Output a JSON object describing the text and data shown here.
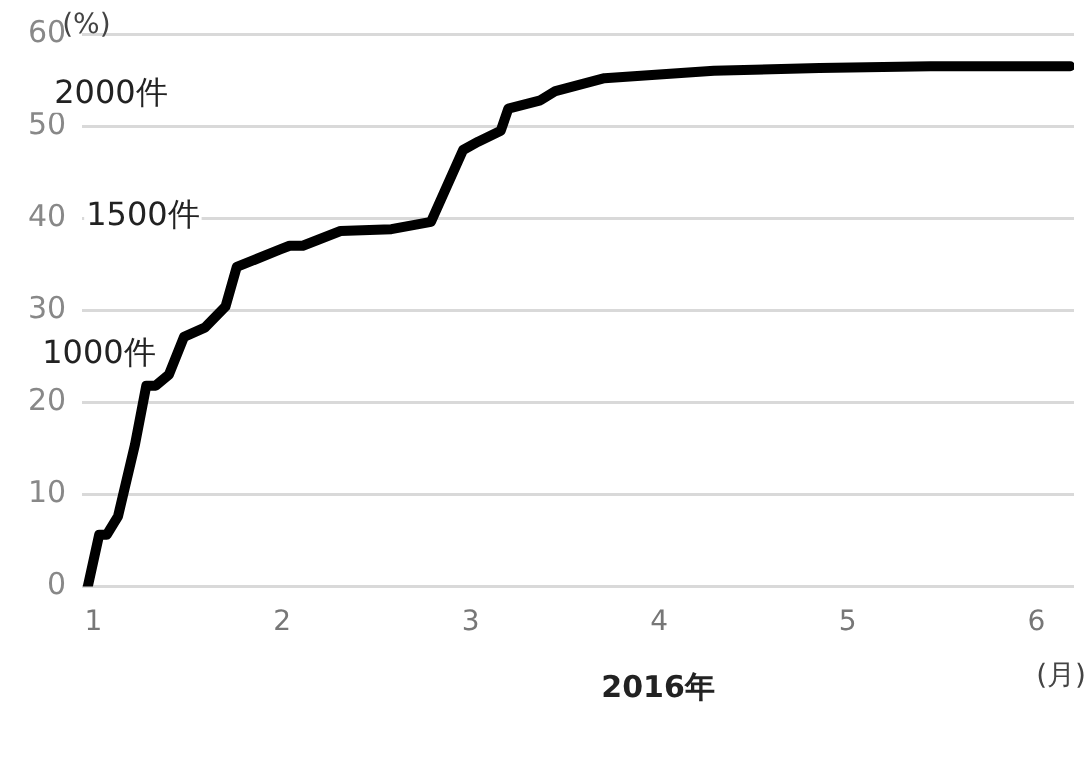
{
  "chart_data": {
    "type": "line",
    "ylabel": "(%)",
    "xlabel": "2016年",
    "x": [
      0.97,
      1.03,
      1.07,
      1.13,
      1.22,
      1.28,
      1.33,
      1.4,
      1.48,
      1.59,
      1.7,
      1.76,
      1.99,
      2.04,
      2.11,
      2.31,
      2.58,
      2.79,
      2.96,
      3.04,
      3.16,
      3.2,
      3.37,
      3.45,
      3.71,
      4.29,
      4.85,
      5.44,
      6.18
    ],
    "series": [
      {
        "color": "#000000",
        "values": [
          0,
          5.6,
          5.6,
          7.6,
          15.4,
          21.8,
          21.8,
          23,
          27.1,
          28.1,
          30.4,
          34.7,
          36.6,
          37,
          37,
          38.6,
          38.8,
          39.6,
          47.4,
          48.3,
          49.5,
          51.9,
          52.8,
          53.8,
          55.2,
          56,
          56.3,
          56.5,
          56.5
        ]
      }
    ],
    "xlim": [
      0.94,
      6.2
    ],
    "xticks": [
      1,
      2,
      3,
      4,
      5,
      6
    ],
    "ylim": [
      0,
      60
    ],
    "yticks": [
      0,
      10,
      20,
      30,
      40,
      50,
      60
    ],
    "grid": "y",
    "legend": false,
    "marker": "none",
    "line_style": "solid",
    "annotations": [
      "2000件",
      "1500件",
      "1000件",
      "(月)"
    ]
  }
}
